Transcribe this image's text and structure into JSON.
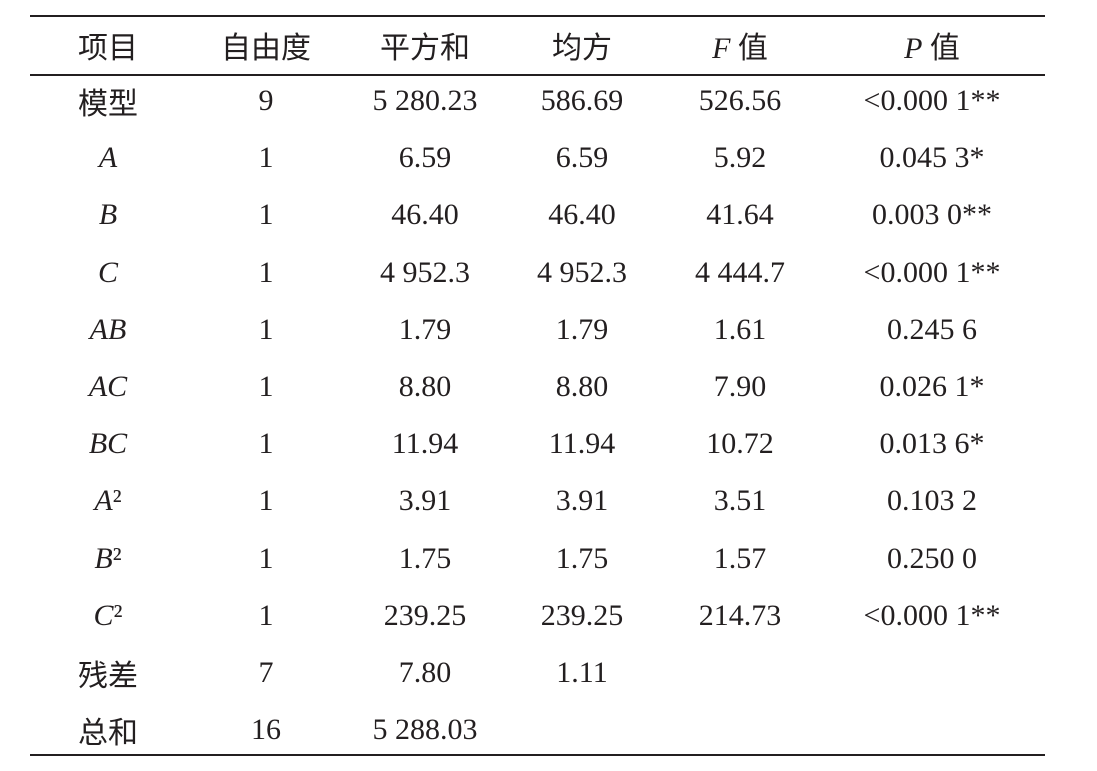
{
  "table": {
    "header": [
      "项目",
      "自由度",
      "平方和",
      "均方",
      "F 值",
      "P 值"
    ],
    "rows": [
      [
        "模型",
        "9",
        "5 280.23",
        "586.69",
        "526.56",
        "<0.000 1**"
      ],
      [
        "A",
        "1",
        "6.59",
        "6.59",
        "5.92",
        "0.045 3*"
      ],
      [
        "B",
        "1",
        "46.40",
        "46.40",
        "41.64",
        "0.003 0**"
      ],
      [
        "C",
        "1",
        "4 952.3",
        "4 952.3",
        "4 444.7",
        "<0.000 1**"
      ],
      [
        "AB",
        "1",
        "1.79",
        "1.79",
        "1.61",
        "0.245 6"
      ],
      [
        "AC",
        "1",
        "8.80",
        "8.80",
        "7.90",
        "0.026 1*"
      ],
      [
        "BC",
        "1",
        "11.94",
        "11.94",
        "10.72",
        "0.013 6*"
      ],
      [
        "A²",
        "1",
        "3.91",
        "3.91",
        "3.51",
        "0.103 2"
      ],
      [
        "B²",
        "1",
        "1.75",
        "1.75",
        "1.57",
        "0.250 0"
      ],
      [
        "C²",
        "1",
        "239.25",
        "239.25",
        "214.73",
        "<0.000 1**"
      ],
      [
        "残差",
        "7",
        "7.80",
        "1.11"
      ],
      [
        "总和",
        "16",
        "5 288.03"
      ]
    ]
  }
}
